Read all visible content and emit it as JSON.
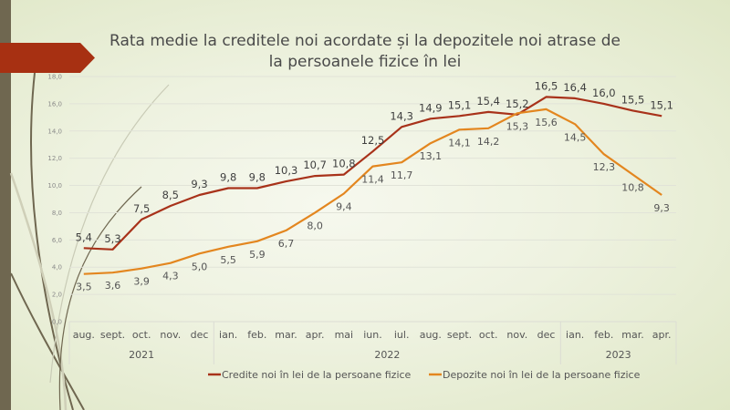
{
  "slide": {
    "title_line1": "Rata medie la creditele noi acordate și la depozitele noi atrase de",
    "title_line2": "la persoanele fizice în lei",
    "colors": {
      "banner": "#a73012",
      "side_bar": "#6f6750"
    }
  },
  "chart_data": {
    "type": "line",
    "title": "Rata medie la creditele noi acordate și la depozitele noi atrase de la persoanele fizice în lei",
    "xlabel": "",
    "ylabel": "",
    "ylim": [
      0,
      18
    ],
    "yticks": [
      "0,0",
      "2,0",
      "4,0",
      "6,0",
      "8,0",
      "10,0",
      "12,0",
      "14,0",
      "16,0",
      "18,0"
    ],
    "grid": true,
    "legend_position": "bottom",
    "categories": [
      "aug.",
      "sept.",
      "oct.",
      "nov.",
      "dec",
      "ian.",
      "feb.",
      "mar.",
      "apr.",
      "mai",
      "iun.",
      "iul.",
      "aug.",
      "sept.",
      "oct.",
      "nov.",
      "dec",
      "ian.",
      "feb.",
      "mar.",
      "apr."
    ],
    "year_groups": [
      {
        "label": "2021",
        "count": 5
      },
      {
        "label": "2022",
        "count": 12
      },
      {
        "label": "2023",
        "count": 4
      }
    ],
    "series": [
      {
        "name": "Credite noi în lei de la persoane fizice",
        "color": "#a8321a",
        "values": [
          5.4,
          5.3,
          7.5,
          8.5,
          9.3,
          9.8,
          9.8,
          10.3,
          10.7,
          10.8,
          12.5,
          14.3,
          14.9,
          15.1,
          15.4,
          15.2,
          16.5,
          16.4,
          16.0,
          15.5,
          15.1
        ],
        "labels": [
          "5,4",
          "5,3",
          "7,5",
          "8,5",
          "9,3",
          "9,8",
          "9,8",
          "10,3",
          "10,7",
          "10,8",
          "12,5",
          "14,3",
          "14,9",
          "15,1",
          "15,4",
          "15,2",
          "16,5",
          "16,4",
          "16,0",
          "15,5",
          "15,1"
        ],
        "label_position": "above"
      },
      {
        "name": "Depozite noi în lei de la persoane fizice",
        "color": "#e3861f",
        "values": [
          3.5,
          3.6,
          3.9,
          4.3,
          5.0,
          5.5,
          5.9,
          6.7,
          8.0,
          9.4,
          11.4,
          11.7,
          13.1,
          14.1,
          14.2,
          15.3,
          15.6,
          14.5,
          12.3,
          10.8,
          9.3
        ],
        "labels": [
          "3,5",
          "3,6",
          "3,9",
          "4,3",
          "5,0",
          "5,5",
          "5,9",
          "6,7",
          "8,0",
          "9,4",
          "11,4",
          "11,7",
          "13,1",
          "14,1",
          "14,2",
          "15,3",
          "15,6",
          "14,5",
          "12,3",
          "10,8",
          "9,3"
        ],
        "label_position": "below"
      }
    ]
  }
}
